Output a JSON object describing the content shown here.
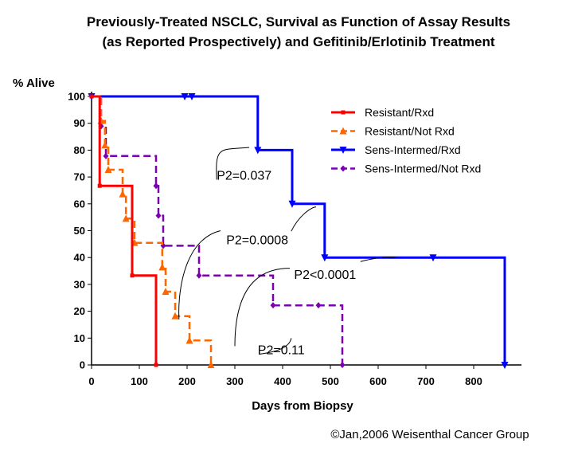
{
  "chart_data": {
    "type": "line",
    "title": [
      "Previously-Treated NSCLC, Survival as Function of Assay Results",
      "(as Reported Prospectively) and  Gefitinib/Erlotinib Treatment"
    ],
    "ylabel": "% Alive",
    "xlabel": "Days from Biopsy",
    "xlim": [
      0,
      900
    ],
    "ylim": [
      0,
      100
    ],
    "xticks": [
      0,
      100,
      200,
      300,
      400,
      500,
      600,
      700,
      800
    ],
    "yticks": [
      0,
      10,
      20,
      30,
      40,
      50,
      60,
      70,
      80,
      90,
      100
    ],
    "grid": false,
    "legend_position": "top-right",
    "series": [
      {
        "name": "Resistant/Rxd",
        "color": "#ff0000",
        "marker": "square",
        "dash": "solid",
        "steps": [
          [
            0,
            100
          ],
          [
            17,
            100
          ],
          [
            17,
            66.7
          ],
          [
            85,
            66.7
          ],
          [
            85,
            33.3
          ],
          [
            135,
            33.3
          ],
          [
            135,
            0
          ]
        ],
        "markers": [
          [
            0,
            100
          ],
          [
            17,
            66.7
          ],
          [
            85,
            33.3
          ],
          [
            135,
            0
          ]
        ]
      },
      {
        "name": "Resistant/Not Rxd",
        "color": "#ff6600",
        "marker": "triangle-up",
        "dash": "dashed",
        "steps": [
          [
            0,
            100
          ],
          [
            20,
            100
          ],
          [
            20,
            90.9
          ],
          [
            28,
            90.9
          ],
          [
            28,
            81.8
          ],
          [
            35,
            81.8
          ],
          [
            35,
            72.7
          ],
          [
            65,
            72.7
          ],
          [
            65,
            63.6
          ],
          [
            72,
            63.6
          ],
          [
            72,
            54.5
          ],
          [
            90,
            54.5
          ],
          [
            90,
            45.5
          ],
          [
            148,
            45.5
          ],
          [
            148,
            36.4
          ],
          [
            155,
            36.4
          ],
          [
            155,
            27.3
          ],
          [
            175,
            27.3
          ],
          [
            175,
            18.2
          ],
          [
            205,
            18.2
          ],
          [
            205,
            9.1
          ],
          [
            250,
            9.1
          ],
          [
            250,
            0
          ]
        ],
        "markers": [
          [
            20,
            90.9
          ],
          [
            28,
            81.8
          ],
          [
            35,
            72.7
          ],
          [
            65,
            63.6
          ],
          [
            72,
            54.5
          ],
          [
            90,
            45.5
          ],
          [
            148,
            36.4
          ],
          [
            155,
            27.3
          ],
          [
            175,
            18.2
          ],
          [
            205,
            9.1
          ],
          [
            250,
            0
          ]
        ]
      },
      {
        "name": "Sens-Intermed/Rxd",
        "color": "#0000ff",
        "marker": "triangle-down",
        "dash": "solid",
        "steps": [
          [
            0,
            100
          ],
          [
            348,
            100
          ],
          [
            348,
            80
          ],
          [
            420,
            80
          ],
          [
            420,
            60
          ],
          [
            488,
            60
          ],
          [
            488,
            40
          ],
          [
            865,
            40
          ],
          [
            865,
            0
          ]
        ],
        "markers": [
          [
            0,
            100
          ],
          [
            195,
            100
          ],
          [
            210,
            100
          ],
          [
            348,
            80
          ],
          [
            420,
            60
          ],
          [
            488,
            40
          ],
          [
            715,
            40
          ],
          [
            865,
            0
          ]
        ]
      },
      {
        "name": "Sens-Intermed/Not Rxd",
        "color": "#7a00b0",
        "marker": "diamond",
        "dash": "dashed",
        "steps": [
          [
            0,
            100
          ],
          [
            20,
            100
          ],
          [
            20,
            88.9
          ],
          [
            30,
            88.9
          ],
          [
            30,
            77.8
          ],
          [
            135,
            77.8
          ],
          [
            135,
            66.7
          ],
          [
            140,
            66.7
          ],
          [
            140,
            55.6
          ],
          [
            150,
            55.6
          ],
          [
            150,
            44.4
          ],
          [
            225,
            44.4
          ],
          [
            225,
            33.3
          ],
          [
            380,
            33.3
          ],
          [
            380,
            22.2
          ],
          [
            525,
            22.2
          ],
          [
            525,
            0
          ]
        ],
        "markers": [
          [
            20,
            88.9
          ],
          [
            30,
            77.8
          ],
          [
            135,
            66.7
          ],
          [
            140,
            55.6
          ],
          [
            150,
            44.4
          ],
          [
            225,
            33.3
          ],
          [
            380,
            22.2
          ],
          [
            475,
            22.2
          ],
          [
            525,
            0
          ]
        ]
      }
    ],
    "annotations": [
      {
        "text": "P2=0.037",
        "x": 262,
        "y": 69,
        "curve": [
          [
            262,
            69
          ],
          [
            258,
            82
          ],
          [
            270,
            80
          ],
          [
            330,
            81
          ]
        ]
      },
      {
        "text": "P2=0.0008",
        "x": 282,
        "y": 45,
        "curve": [
          [
            270,
            50
          ],
          [
            200,
            47
          ],
          [
            180,
            30
          ],
          [
            183,
            17
          ]
        ]
      },
      {
        "text": "P2<0.0001",
        "x": 424,
        "y": 32,
        "curve": [
          [
            415,
            36
          ],
          [
            345,
            36
          ],
          [
            300,
            28
          ],
          [
            300,
            7
          ]
        ]
      },
      {
        "text": "P2=0.11",
        "x": 348,
        "y": 4,
        "curve": [
          [
            350,
            4
          ],
          [
            395,
            5
          ],
          [
            415,
            7
          ],
          [
            418,
            10
          ]
        ]
      },
      {
        "text": "",
        "x": 0,
        "y": 0,
        "curve": [
          [
            418,
            49.8
          ],
          [
            435,
            56
          ],
          [
            463,
            59
          ],
          [
            470,
            58.8
          ]
        ]
      },
      {
        "text": "",
        "x": 0,
        "y": 0,
        "curve": [
          [
            563,
            38.5
          ],
          [
            595,
            40
          ],
          [
            620,
            40.5
          ],
          [
            640,
            40
          ]
        ]
      }
    ]
  },
  "footer": "©Jan,2006 Weisenthal Cancer Group"
}
